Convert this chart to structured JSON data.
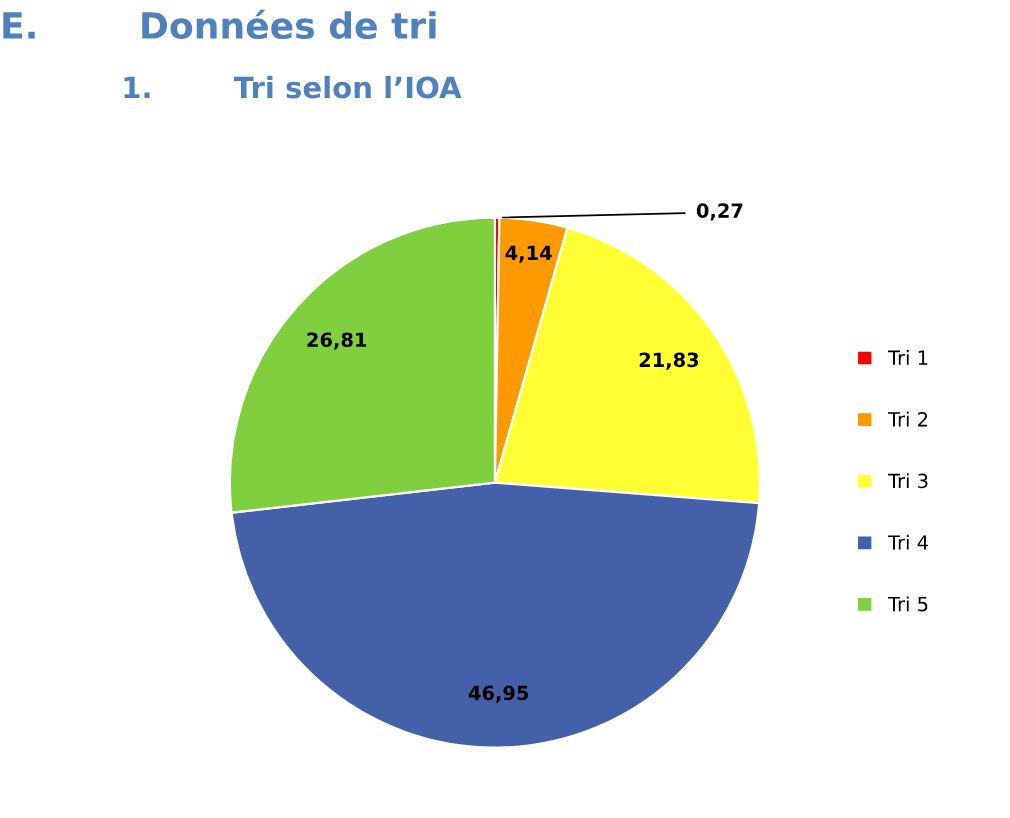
{
  "chart_data": {
    "type": "pie",
    "title": "E.        Données de tri",
    "subtitle": "1.        Tri selon l’IOA",
    "categories": [
      "Tri 1",
      "Tri 2",
      "Tri 3",
      "Tri 4",
      "Tri 5"
    ],
    "values": [
      0.27,
      4.14,
      21.83,
      46.95,
      26.81
    ],
    "value_labels": [
      "0,27",
      "4,14",
      "21,83",
      "46,95",
      "26,81"
    ],
    "colors": [
      "#ff0000",
      "#ff9900",
      "#ffff33",
      "#4360a8",
      "#7fcf3f"
    ],
    "legend": "right"
  }
}
